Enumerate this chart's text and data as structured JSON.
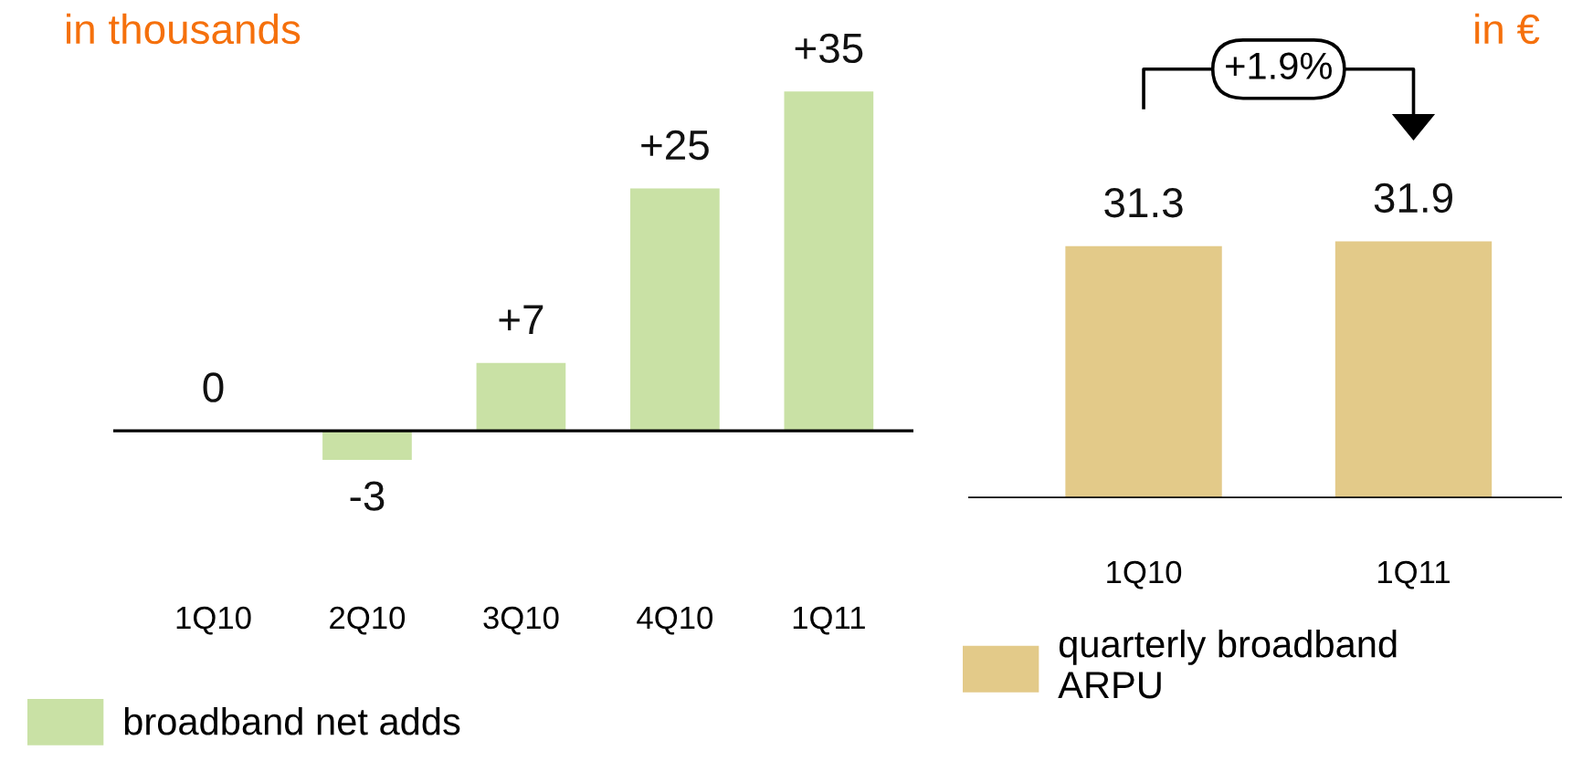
{
  "chart_data": [
    {
      "type": "bar",
      "title": "in thousands",
      "categories": [
        "1Q10",
        "2Q10",
        "3Q10",
        "4Q10",
        "1Q11"
      ],
      "legend": "bottom left",
      "series": [
        {
          "name": "broadband net adds",
          "color": "#c9e1a5",
          "values": [
            0,
            -3,
            7,
            25,
            35
          ],
          "value_labels": [
            "0",
            "-3",
            "+7",
            "+25",
            "+35"
          ]
        }
      ]
    },
    {
      "type": "bar",
      "title": "in €",
      "categories": [
        "1Q10",
        "1Q11"
      ],
      "legend": "bottom left",
      "data_labels": true,
      "series": [
        {
          "name": "quarterly broadband\nARPU",
          "color": "#e3ca89",
          "values": [
            31.3,
            31.9
          ]
        }
      ],
      "annotations": [
        "+1.9%"
      ]
    }
  ]
}
